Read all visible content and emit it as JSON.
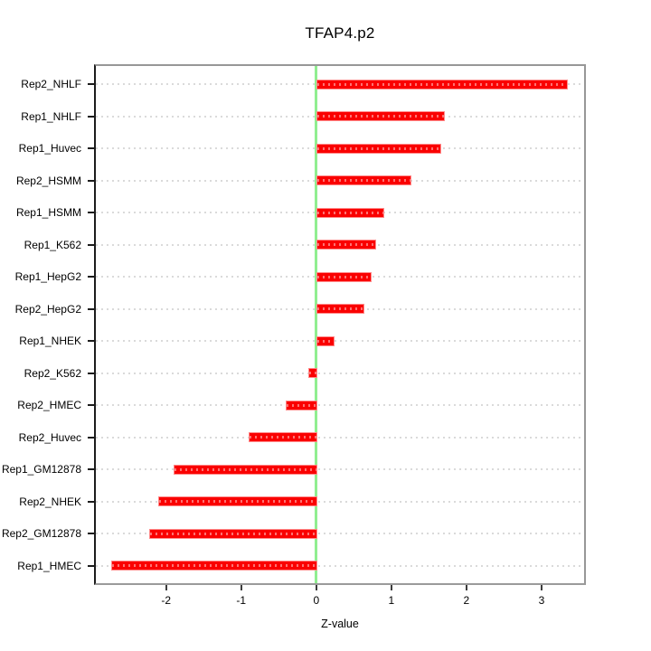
{
  "chart_data": {
    "type": "bar",
    "orientation": "horizontal",
    "title": "TFAP4.p2",
    "xlabel": "Z-value",
    "ylabel": "",
    "categories": [
      "Rep2_NHLF",
      "Rep1_NHLF",
      "Rep1_Huvec",
      "Rep2_HSMM",
      "Rep1_HSMM",
      "Rep1_K562",
      "Rep1_HepG2",
      "Rep2_HepG2",
      "Rep1_NHEK",
      "Rep2_K562",
      "Rep2_HMEC",
      "Rep2_Huvec",
      "Rep1_GM12878",
      "Rep2_NHEK",
      "Rep2_GM12878",
      "Rep1_HMEC"
    ],
    "values": [
      3.34,
      1.7,
      1.65,
      1.25,
      0.89,
      0.79,
      0.73,
      0.63,
      0.23,
      -0.1,
      -0.41,
      -0.9,
      -1.9,
      -2.11,
      -2.22,
      -2.73
    ],
    "x_ticks": [
      -2,
      -1,
      0,
      1,
      2,
      3
    ],
    "xlim": [
      -2.96,
      3.59
    ],
    "grid": "dotted-row-lines",
    "legend": "none",
    "colors": {
      "bar_fill": "#fa0000",
      "bar_border": "#ff8a8a",
      "bar_dash_overlay": "rgba(255,255,255,0.45)",
      "zero_line": "#90ee90",
      "grid_line": "#dadada",
      "box_border": "#979797",
      "axis_line": "#1c1c1c",
      "text": "#000000"
    }
  }
}
